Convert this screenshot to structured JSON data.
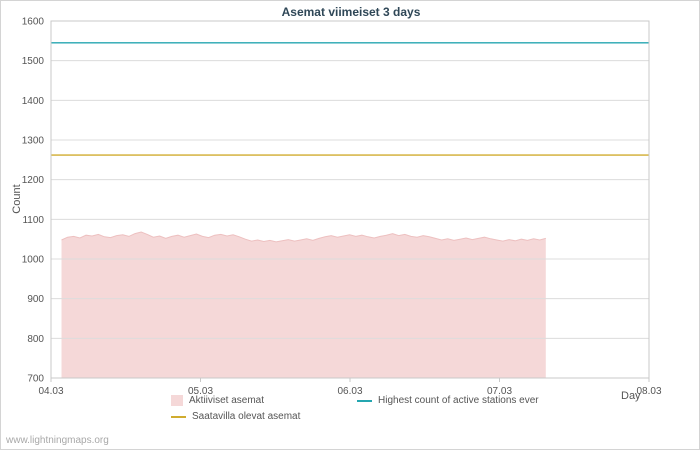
{
  "title": "Asemat viimeiset 3 days",
  "watermark": "www.lightningmaps.org",
  "chart_data": {
    "type": "area",
    "title": "Asemat viimeiset 3 days",
    "xlabel": "Day",
    "ylabel": "Count",
    "ylim": [
      700,
      1600
    ],
    "xlim_days": [
      0,
      4
    ],
    "grid": "horizontal",
    "legend_position": "bottom",
    "y_ticks": [
      700,
      800,
      900,
      1000,
      1100,
      1200,
      1300,
      1400,
      1500,
      1600
    ],
    "x_ticks": [
      "04.03",
      "05.03",
      "06.03",
      "07.03",
      "08.03"
    ],
    "x_tick_positions": [
      0,
      1,
      2,
      3,
      4
    ],
    "colors": {
      "grid": "#dcdcdc",
      "frame": "#c9c9c9",
      "tick_text": "#555555"
    },
    "series": [
      {
        "name": "Aktiiviset asemat",
        "type": "area",
        "color": "#f5d8d8",
        "edge_color": "#edc0c0",
        "x_start": 0.07,
        "x_end": 3.31,
        "values": [
          1048,
          1055,
          1057,
          1053,
          1060,
          1058,
          1062,
          1056,
          1054,
          1059,
          1061,
          1057,
          1064,
          1068,
          1062,
          1055,
          1058,
          1052,
          1057,
          1060,
          1055,
          1059,
          1063,
          1057,
          1054,
          1060,
          1062,
          1058,
          1061,
          1056,
          1050,
          1045,
          1048,
          1044,
          1047,
          1043,
          1046,
          1049,
          1045,
          1048,
          1051,
          1047,
          1052,
          1056,
          1059,
          1055,
          1058,
          1061,
          1057,
          1060,
          1056,
          1053,
          1057,
          1060,
          1064,
          1059,
          1062,
          1057,
          1055,
          1059,
          1056,
          1052,
          1048,
          1051,
          1047,
          1050,
          1053,
          1049,
          1052,
          1055,
          1051,
          1048,
          1045,
          1049,
          1046,
          1050,
          1047,
          1051,
          1048,
          1052
        ]
      },
      {
        "name": "Saatavilla olevat asemat",
        "type": "hline",
        "color": "#d0ac2f",
        "value": 1262
      },
      {
        "name": "Highest count of active stations ever",
        "type": "hline",
        "color": "#25a6b0",
        "value": 1545
      }
    ]
  }
}
